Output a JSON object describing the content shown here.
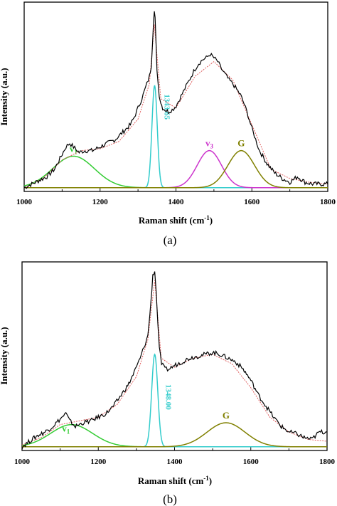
{
  "chart_data": [
    {
      "panel": "(a)",
      "type": "line",
      "xlabel_main": "Raman shift (cm",
      "xlabel_sup": "-1",
      "xlabel_end": ")",
      "ylabel": "Intensity (a.u.)",
      "xlim": [
        1000,
        1800
      ],
      "xticks": [
        "1000",
        "1200",
        "1400",
        "1600",
        "1800"
      ],
      "baseline": 0.02,
      "ylim": [
        0,
        1.0
      ],
      "raw": {
        "color": "#000000",
        "x": [
          1000,
          1020,
          1040,
          1060,
          1080,
          1100,
          1110,
          1120,
          1130,
          1145,
          1160,
          1180,
          1200,
          1220,
          1240,
          1260,
          1280,
          1290,
          1300,
          1310,
          1320,
          1330,
          1335,
          1338,
          1341,
          1343,
          1345,
          1347,
          1350,
          1353,
          1356,
          1360,
          1365,
          1372,
          1380,
          1390,
          1400,
          1410,
          1420,
          1430,
          1440,
          1450,
          1460,
          1470,
          1480,
          1490,
          1500,
          1510,
          1520,
          1530,
          1540,
          1550,
          1560,
          1570,
          1580,
          1590,
          1600,
          1610,
          1620,
          1640,
          1660,
          1680,
          1700,
          1720,
          1740,
          1760,
          1780,
          1800
        ],
        "y": [
          0.02,
          0.04,
          0.06,
          0.08,
          0.12,
          0.2,
          0.24,
          0.26,
          0.24,
          0.21,
          0.22,
          0.22,
          0.24,
          0.26,
          0.28,
          0.32,
          0.36,
          0.4,
          0.45,
          0.5,
          0.56,
          0.62,
          0.68,
          0.8,
          0.93,
          0.97,
          0.93,
          0.82,
          0.66,
          0.58,
          0.52,
          0.48,
          0.45,
          0.44,
          0.43,
          0.44,
          0.46,
          0.5,
          0.54,
          0.58,
          0.62,
          0.66,
          0.69,
          0.71,
          0.72,
          0.74,
          0.72,
          0.7,
          0.66,
          0.63,
          0.6,
          0.58,
          0.55,
          0.52,
          0.47,
          0.41,
          0.34,
          0.28,
          0.22,
          0.15,
          0.1,
          0.07,
          0.05,
          0.08,
          0.05,
          0.04,
          0.04,
          0.04
        ]
      },
      "fit": {
        "color": "#e06060",
        "x": [
          1000,
          1050,
          1100,
          1150,
          1200,
          1250,
          1300,
          1330,
          1343,
          1360,
          1400,
          1450,
          1500,
          1550,
          1600,
          1650,
          1700,
          1750,
          1800
        ],
        "y": [
          0.02,
          0.07,
          0.17,
          0.22,
          0.23,
          0.27,
          0.39,
          0.58,
          0.9,
          0.5,
          0.45,
          0.62,
          0.7,
          0.6,
          0.36,
          0.12,
          0.07,
          0.05,
          0.04
        ]
      },
      "peaks": [
        {
          "label": "v",
          "sub": "1",
          "color": "#33cc33",
          "center": 1130,
          "amp": 0.17,
          "sigma": 55
        },
        {
          "label": "1343.65",
          "color": "#33cccc",
          "center": 1343.65,
          "amp": 0.55,
          "sigma": 7
        },
        {
          "label": "v",
          "sub": "3",
          "color": "#cc33cc",
          "center": 1488,
          "amp": 0.2,
          "sigma": 32
        },
        {
          "label": "G",
          "color": "#808000",
          "center": 1572,
          "amp": 0.2,
          "sigma": 35
        }
      ],
      "caption": "(a)"
    },
    {
      "panel": "(b)",
      "type": "line",
      "xlabel_main": "Raman shift (cm",
      "xlabel_sup": "-1",
      "xlabel_end": ")",
      "ylabel": "Intensity (a.u.)",
      "xlim": [
        1000,
        1800
      ],
      "xticks": [
        "1000",
        "1200",
        "1400",
        "1600",
        "1800"
      ],
      "baseline": 0.02,
      "ylim": [
        0,
        1.0
      ],
      "raw": {
        "color": "#000000",
        "x": [
          1000,
          1020,
          1040,
          1060,
          1080,
          1100,
          1115,
          1125,
          1140,
          1160,
          1180,
          1200,
          1220,
          1240,
          1260,
          1280,
          1300,
          1310,
          1320,
          1330,
          1338,
          1343,
          1348,
          1352,
          1356,
          1360,
          1366,
          1375,
          1385,
          1400,
          1420,
          1440,
          1460,
          1480,
          1500,
          1520,
          1540,
          1560,
          1580,
          1600,
          1620,
          1640,
          1660,
          1680,
          1700,
          1720,
          1740,
          1760,
          1780,
          1800
        ],
        "y": [
          0.02,
          0.05,
          0.08,
          0.1,
          0.13,
          0.17,
          0.2,
          0.16,
          0.13,
          0.15,
          0.16,
          0.18,
          0.2,
          0.24,
          0.3,
          0.36,
          0.45,
          0.5,
          0.56,
          0.62,
          0.8,
          0.95,
          0.97,
          0.85,
          0.7,
          0.55,
          0.47,
          0.44,
          0.44,
          0.46,
          0.48,
          0.5,
          0.51,
          0.52,
          0.53,
          0.52,
          0.5,
          0.48,
          0.44,
          0.38,
          0.3,
          0.24,
          0.18,
          0.13,
          0.1,
          0.09,
          0.07,
          0.06,
          0.1,
          0.1
        ]
      },
      "fit": {
        "color": "#e06060",
        "x": [
          1000,
          1050,
          1100,
          1150,
          1200,
          1250,
          1300,
          1330,
          1348,
          1365,
          1400,
          1450,
          1500,
          1550,
          1600,
          1650,
          1700,
          1750,
          1800
        ],
        "y": [
          0.03,
          0.07,
          0.14,
          0.16,
          0.18,
          0.25,
          0.4,
          0.6,
          0.92,
          0.5,
          0.45,
          0.5,
          0.52,
          0.47,
          0.34,
          0.18,
          0.1,
          0.06,
          0.05
        ]
      },
      "peaks": [
        {
          "label": "v",
          "sub": "1",
          "color": "#33cc33",
          "center": 1130,
          "amp": 0.12,
          "sigma": 55
        },
        {
          "label": "1348.00",
          "color": "#33cccc",
          "center": 1348,
          "amp": 0.5,
          "sigma": 8
        },
        {
          "label": "G",
          "color": "#808000",
          "center": 1535,
          "amp": 0.13,
          "sigma": 50
        }
      ],
      "caption": "(b)"
    }
  ]
}
